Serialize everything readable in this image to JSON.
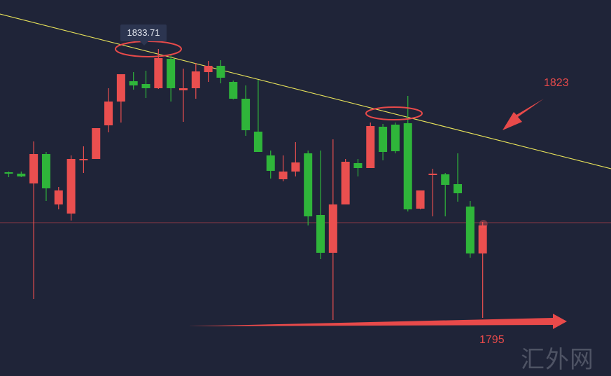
{
  "chart_data": {
    "type": "candlestick",
    "price_range": [
      1788,
      1838
    ],
    "candles": [
      {
        "o": 1816.1,
        "h": 1816.2,
        "l": 1815.4,
        "c": 1815.9
      },
      {
        "o": 1815.9,
        "h": 1816.2,
        "l": 1815.4,
        "c": 1815.5
      },
      {
        "o": 1814.5,
        "h": 1820.5,
        "l": 1798.0,
        "c": 1818.7
      },
      {
        "o": 1818.7,
        "h": 1819.0,
        "l": 1812.0,
        "c": 1813.8
      },
      {
        "o": 1811.5,
        "h": 1814.0,
        "l": 1810.8,
        "c": 1813.5
      },
      {
        "o": 1810.2,
        "h": 1818.5,
        "l": 1809.2,
        "c": 1818.0
      },
      {
        "o": 1818.0,
        "h": 1819.8,
        "l": 1816.0,
        "c": 1818.0
      },
      {
        "o": 1818.0,
        "h": 1822.4,
        "l": 1818.0,
        "c": 1822.4
      },
      {
        "o": 1822.8,
        "h": 1828.1,
        "l": 1821.8,
        "c": 1826.2
      },
      {
        "o": 1826.2,
        "h": 1830.0,
        "l": 1823.2,
        "c": 1830.1
      },
      {
        "o": 1829.1,
        "h": 1830.4,
        "l": 1827.9,
        "c": 1828.5
      },
      {
        "o": 1828.7,
        "h": 1830.6,
        "l": 1826.7,
        "c": 1828.1
      },
      {
        "o": 1828.1,
        "h": 1833.7,
        "l": 1828.0,
        "c": 1832.4
      },
      {
        "o": 1832.3,
        "h": 1833.0,
        "l": 1826.2,
        "c": 1828.1
      },
      {
        "o": 1827.8,
        "h": 1830.9,
        "l": 1823.3,
        "c": 1828.1
      },
      {
        "o": 1828.1,
        "h": 1831.7,
        "l": 1826.6,
        "c": 1830.5
      },
      {
        "o": 1830.4,
        "h": 1832.0,
        "l": 1829.0,
        "c": 1831.3
      },
      {
        "o": 1831.3,
        "h": 1832.1,
        "l": 1828.8,
        "c": 1829.6
      },
      {
        "o": 1829.0,
        "h": 1829.2,
        "l": 1826.5,
        "c": 1826.6
      },
      {
        "o": 1826.6,
        "h": 1828.5,
        "l": 1821.3,
        "c": 1822.1
      },
      {
        "o": 1821.9,
        "h": 1829.3,
        "l": 1819.2,
        "c": 1819.0
      },
      {
        "o": 1818.5,
        "h": 1819.2,
        "l": 1815.2,
        "c": 1816.3
      },
      {
        "o": 1815.1,
        "h": 1818.5,
        "l": 1814.8,
        "c": 1816.2
      },
      {
        "o": 1816.2,
        "h": 1820.4,
        "l": 1815.5,
        "c": 1817.5
      },
      {
        "o": 1818.8,
        "h": 1819.2,
        "l": 1808.5,
        "c": 1809.8
      },
      {
        "o": 1810.0,
        "h": 1819.2,
        "l": 1803.7,
        "c": 1804.6
      },
      {
        "o": 1804.6,
        "h": 1820.8,
        "l": 1795.0,
        "c": 1811.5
      },
      {
        "o": 1811.5,
        "h": 1818.0,
        "l": 1811.5,
        "c": 1817.6
      },
      {
        "o": 1817.4,
        "h": 1818.0,
        "l": 1815.5,
        "c": 1816.7
      },
      {
        "o": 1816.7,
        "h": 1823.2,
        "l": 1816.7,
        "c": 1822.7
      },
      {
        "o": 1822.6,
        "h": 1823.0,
        "l": 1817.8,
        "c": 1819.0
      },
      {
        "o": 1822.9,
        "h": 1823.2,
        "l": 1818.8,
        "c": 1819.1
      },
      {
        "o": 1823.1,
        "h": 1827.0,
        "l": 1810.5,
        "c": 1810.8
      },
      {
        "o": 1810.9,
        "h": 1813.4,
        "l": 1810.8,
        "c": 1813.5
      },
      {
        "o": 1815.8,
        "h": 1816.6,
        "l": 1809.8,
        "c": 1815.9
      },
      {
        "o": 1815.8,
        "h": 1816.0,
        "l": 1809.8,
        "c": 1814.3
      },
      {
        "o": 1814.4,
        "h": 1818.8,
        "l": 1811.9,
        "c": 1813.1
      },
      {
        "o": 1811.2,
        "h": 1812.0,
        "l": 1803.9,
        "c": 1804.5
      },
      {
        "o": 1804.5,
        "h": 1809.0,
        "l": 1795.3,
        "c": 1808.5
      }
    ],
    "bullish_color": "#ea4f4f",
    "bearish_color": "#2fb53a",
    "trendline_color": "#e8e35a",
    "horizontal_line_price": 1808.9,
    "high_label": "1833.71",
    "annotations": [
      "1823",
      "1795"
    ],
    "watermark": "汇外网"
  }
}
